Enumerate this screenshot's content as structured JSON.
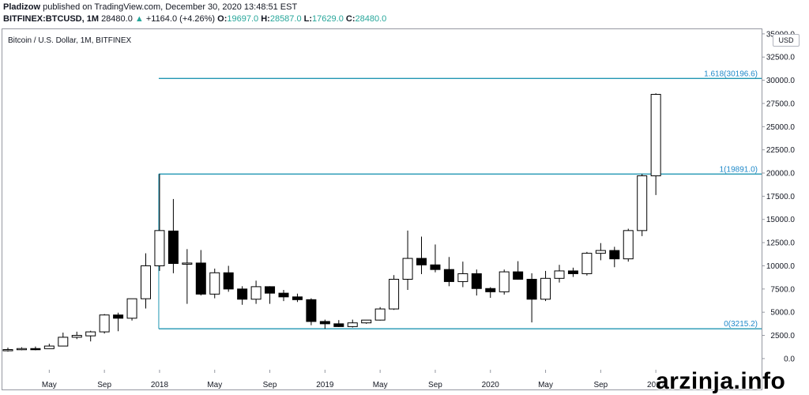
{
  "header": {
    "publisher": "Pladizow",
    "published_text": "published on TradingView.com, December 30, 2020 13:48:51 EST",
    "symbol_info": "BITFINEX:BTCUSD, 1M",
    "last": "28480.0",
    "change_arrow": "▲",
    "change": "+1164.0 (+4.26%)",
    "o_label": "O:",
    "o_value": "19697.0",
    "h_label": "H:",
    "h_value": "28587.0",
    "l_label": "L:",
    "l_value": "17629.0",
    "c_label": "C:",
    "c_value": "28480.0"
  },
  "currency_badge": "USD",
  "watermark": "arzinja.info",
  "colors": {
    "fib_line": "#2196b3",
    "fib_label": "#1e88c9",
    "candle_border": "#000000",
    "candle_up_fill": "#ffffff",
    "candle_down_fill": "#000000",
    "axis_text": "#131722"
  },
  "chart_data": {
    "type": "candlestick",
    "title": "Bitcoin / U.S. Dollar, 1M, BITFINEX",
    "ylim": [
      -1200,
      35500
    ],
    "y_ticks": [
      0,
      2500,
      5000,
      7500,
      10000,
      12500,
      15000,
      17500,
      20000,
      22500,
      25000,
      27500,
      30000,
      32500,
      35000
    ],
    "y_tick_labels": [
      "0.0",
      "2500.0",
      "5000.0",
      "7500.0",
      "10000.0",
      "12500.0",
      "15000.0",
      "17500.0",
      "20000.0",
      "22500.0",
      "25000.0",
      "27500.0",
      "30000.0",
      "32500.0",
      "35000.0"
    ],
    "x_ticks": [
      {
        "index": 3,
        "label": "May"
      },
      {
        "index": 7,
        "label": "Sep"
      },
      {
        "index": 11,
        "label": "2018"
      },
      {
        "index": 15,
        "label": "May"
      },
      {
        "index": 19,
        "label": "Sep"
      },
      {
        "index": 23,
        "label": "2019"
      },
      {
        "index": 27,
        "label": "May"
      },
      {
        "index": 31,
        "label": "Sep"
      },
      {
        "index": 35,
        "label": "2020"
      },
      {
        "index": 39,
        "label": "May"
      },
      {
        "index": 43,
        "label": "Sep"
      },
      {
        "index": 47,
        "label": "2021"
      }
    ],
    "candles": [
      {
        "o": 960,
        "h": 1180,
        "l": 760,
        "c": 970
      },
      {
        "o": 970,
        "h": 1220,
        "l": 900,
        "c": 1080
      },
      {
        "o": 1080,
        "h": 1300,
        "l": 900,
        "c": 1070
      },
      {
        "o": 1070,
        "h": 1600,
        "l": 1050,
        "c": 1350
      },
      {
        "o": 1350,
        "h": 2800,
        "l": 1340,
        "c": 2300
      },
      {
        "o": 2300,
        "h": 2900,
        "l": 2100,
        "c": 2500
      },
      {
        "o": 2450,
        "h": 3000,
        "l": 1850,
        "c": 2880
      },
      {
        "o": 2880,
        "h": 4800,
        "l": 2700,
        "c": 4700
      },
      {
        "o": 4700,
        "h": 4950,
        "l": 2950,
        "c": 4350
      },
      {
        "o": 4350,
        "h": 6450,
        "l": 4100,
        "c": 6450
      },
      {
        "o": 6450,
        "h": 11350,
        "l": 5400,
        "c": 10000
      },
      {
        "o": 10000,
        "h": 19891,
        "l": 9450,
        "c": 13800
      },
      {
        "o": 13750,
        "h": 17200,
        "l": 9200,
        "c": 10250
      },
      {
        "o": 10250,
        "h": 11800,
        "l": 5900,
        "c": 10300
      },
      {
        "o": 10300,
        "h": 11700,
        "l": 6800,
        "c": 6950
      },
      {
        "o": 6950,
        "h": 9700,
        "l": 6500,
        "c": 9250
      },
      {
        "o": 9250,
        "h": 10000,
        "l": 7200,
        "c": 7500
      },
      {
        "o": 7500,
        "h": 7800,
        "l": 5800,
        "c": 6400
      },
      {
        "o": 6400,
        "h": 8400,
        "l": 5900,
        "c": 7750
      },
      {
        "o": 7750,
        "h": 7800,
        "l": 5900,
        "c": 7050
      },
      {
        "o": 7050,
        "h": 7400,
        "l": 6200,
        "c": 6650
      },
      {
        "o": 6650,
        "h": 7000,
        "l": 6100,
        "c": 6350
      },
      {
        "o": 6350,
        "h": 6500,
        "l": 3600,
        "c": 4000
      },
      {
        "o": 4000,
        "h": 4200,
        "l": 3215.2,
        "c": 3750
      },
      {
        "o": 3750,
        "h": 4150,
        "l": 3400,
        "c": 3450
      },
      {
        "o": 3450,
        "h": 4200,
        "l": 3350,
        "c": 3850
      },
      {
        "o": 3850,
        "h": 4150,
        "l": 3750,
        "c": 4150
      },
      {
        "o": 4150,
        "h": 5550,
        "l": 4100,
        "c": 5350
      },
      {
        "o": 5350,
        "h": 9000,
        "l": 5250,
        "c": 8550
      },
      {
        "o": 8550,
        "h": 13800,
        "l": 7400,
        "c": 10800
      },
      {
        "o": 10800,
        "h": 13150,
        "l": 9100,
        "c": 10100
      },
      {
        "o": 10100,
        "h": 12300,
        "l": 9300,
        "c": 9600
      },
      {
        "o": 9600,
        "h": 10950,
        "l": 7800,
        "c": 8300
      },
      {
        "o": 8300,
        "h": 10450,
        "l": 7700,
        "c": 9150
      },
      {
        "o": 9150,
        "h": 9600,
        "l": 6800,
        "c": 7550
      },
      {
        "o": 7550,
        "h": 7700,
        "l": 6550,
        "c": 7200
      },
      {
        "o": 7200,
        "h": 9600,
        "l": 6900,
        "c": 9350
      },
      {
        "o": 9350,
        "h": 10500,
        "l": 8500,
        "c": 8550
      },
      {
        "o": 8550,
        "h": 9200,
        "l": 3900,
        "c": 6400
      },
      {
        "o": 6400,
        "h": 9450,
        "l": 6200,
        "c": 8650
      },
      {
        "o": 8650,
        "h": 10100,
        "l": 8200,
        "c": 9450
      },
      {
        "o": 9450,
        "h": 9800,
        "l": 8800,
        "c": 9150
      },
      {
        "o": 9150,
        "h": 11500,
        "l": 8950,
        "c": 11350
      },
      {
        "o": 11350,
        "h": 12450,
        "l": 10600,
        "c": 11650
      },
      {
        "o": 11650,
        "h": 12050,
        "l": 9850,
        "c": 10750
      },
      {
        "o": 10750,
        "h": 14000,
        "l": 10450,
        "c": 13800
      },
      {
        "o": 13800,
        "h": 19900,
        "l": 13200,
        "c": 19700
      },
      {
        "o": 19697,
        "h": 28587,
        "l": 17629,
        "c": 28480
      }
    ],
    "fib_levels": [
      {
        "label": "1.618(30196.6)",
        "value": 30196.6
      },
      {
        "label": "1(19891.0)",
        "value": 19891.0
      },
      {
        "label": "0(3215.2)",
        "value": 3215.2
      }
    ],
    "fib_start_index": 11
  }
}
